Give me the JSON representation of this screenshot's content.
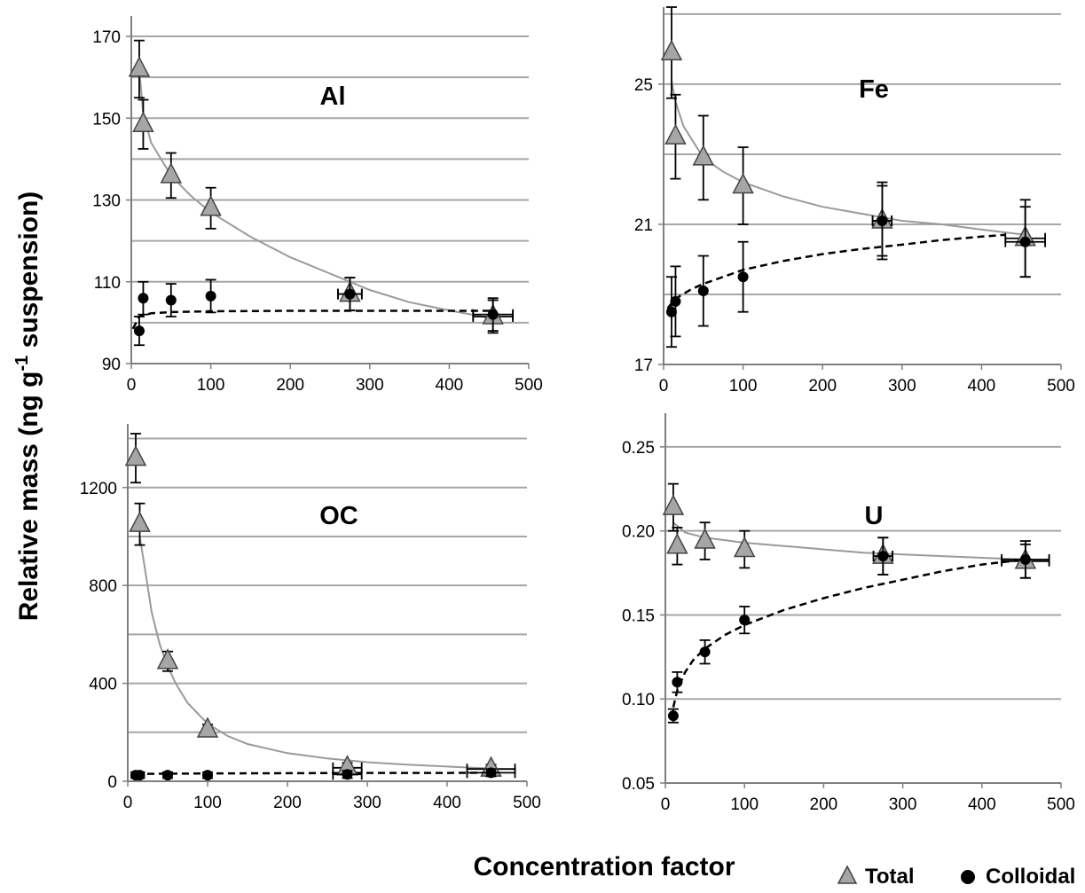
{
  "figure": {
    "ylabel_main": "Relative mass (ng g",
    "ylabel_sup": "-1",
    "ylabel_tail": " suspension)",
    "xlabel": "Concentration factor",
    "legend": [
      {
        "label": "Total",
        "marker": "triangle",
        "color": "#a6a6a6"
      },
      {
        "label": "Colloidal",
        "marker": "circle",
        "color": "#000000"
      }
    ],
    "colors": {
      "grid": "#a6a6a6",
      "total_fit": "#9a9a9a",
      "colloidal_fit": "#000000"
    }
  },
  "chart_data": [
    {
      "type": "scatter",
      "title": "Al",
      "xlabel": "",
      "ylabel": "",
      "xlim": [
        0,
        500
      ],
      "ylim": [
        90,
        175
      ],
      "xticks": [
        0,
        100,
        200,
        300,
        400,
        500
      ],
      "yticks": [
        90,
        110,
        130,
        150,
        170
      ],
      "grid_lines": [
        90,
        100,
        110,
        120,
        130,
        140,
        150,
        160,
        170
      ],
      "tick_format": "int",
      "series": [
        {
          "name": "Total",
          "marker": "triangle",
          "points": [
            {
              "x": 10,
              "y": 162,
              "yerr": 7
            },
            {
              "x": 15,
              "y": 148.5,
              "yerr": 6
            },
            {
              "x": 50,
              "y": 136,
              "yerr": 5.5
            },
            {
              "x": 100,
              "y": 128,
              "yerr": 5
            },
            {
              "x": 275,
              "y": 107,
              "yerr": 4,
              "xerr": 15
            },
            {
              "x": 455,
              "y": 101.5,
              "yerr": 4,
              "xerr": 25
            }
          ]
        },
        {
          "name": "Colloidal",
          "marker": "circle",
          "points": [
            {
              "x": 10,
              "y": 98,
              "yerr": 3.5
            },
            {
              "x": 15,
              "y": 106,
              "yerr": 4
            },
            {
              "x": 50,
              "y": 105.5,
              "yerr": 4
            },
            {
              "x": 100,
              "y": 106.5,
              "yerr": 4
            },
            {
              "x": 275,
              "y": 107,
              "yerr": 4,
              "xerr": 15
            },
            {
              "x": 455,
              "y": 102,
              "yerr": 4,
              "xerr": 25
            }
          ]
        }
      ],
      "fits": [
        {
          "series": "Total",
          "style": "solid",
          "x": [
            10,
            15,
            25,
            50,
            75,
            100,
            150,
            200,
            250,
            300,
            350,
            400,
            455
          ],
          "y": [
            162,
            151,
            144,
            136,
            131,
            127,
            121,
            116,
            112,
            108,
            105,
            103,
            101
          ]
        },
        {
          "series": "Colloidal",
          "style": "dashed",
          "x": [
            2,
            10,
            25,
            50,
            100,
            200,
            300,
            400,
            455
          ],
          "y": [
            98.5,
            101.5,
            102.3,
            102.6,
            102.8,
            102.9,
            102.9,
            102.9,
            102.9
          ]
        }
      ]
    },
    {
      "type": "scatter",
      "title": "Fe",
      "xlabel": "",
      "ylabel": "",
      "xlim": [
        0,
        500
      ],
      "ylim": [
        17,
        27.2
      ],
      "xticks": [
        0,
        100,
        200,
        300,
        400,
        500
      ],
      "yticks": [
        17,
        21,
        25
      ],
      "grid_lines": [
        17,
        19,
        21,
        23,
        25,
        27
      ],
      "tick_format": "int",
      "series": [
        {
          "name": "Total",
          "marker": "triangle",
          "points": [
            {
              "x": 10,
              "y": 25.9,
              "yerr": 1.3
            },
            {
              "x": 15,
              "y": 23.5,
              "yerr": 1.2
            },
            {
              "x": 50,
              "y": 22.9,
              "yerr": 1.2
            },
            {
              "x": 100,
              "y": 22.1,
              "yerr": 1.1
            },
            {
              "x": 275,
              "y": 21.1,
              "yerr": 1.1,
              "xerr": 12
            },
            {
              "x": 455,
              "y": 20.6,
              "yerr": 1.1,
              "xerr": 25
            }
          ]
        },
        {
          "name": "Colloidal",
          "marker": "circle",
          "points": [
            {
              "x": 10,
              "y": 18.5,
              "yerr": 1.0
            },
            {
              "x": 15,
              "y": 18.8,
              "yerr": 1.0
            },
            {
              "x": 50,
              "y": 19.1,
              "yerr": 1.0
            },
            {
              "x": 100,
              "y": 19.5,
              "yerr": 1.0
            },
            {
              "x": 275,
              "y": 21.1,
              "yerr": 1.0,
              "xerr": 12
            },
            {
              "x": 455,
              "y": 20.5,
              "yerr": 1.0,
              "xerr": 25
            }
          ]
        }
      ],
      "fits": [
        {
          "series": "Total",
          "style": "solid",
          "x": [
            10,
            15,
            25,
            50,
            75,
            100,
            150,
            200,
            250,
            300,
            350,
            400,
            455
          ],
          "y": [
            25.1,
            24.5,
            23.8,
            22.9,
            22.5,
            22.2,
            21.8,
            21.5,
            21.3,
            21.1,
            21.0,
            20.85,
            20.7
          ]
        },
        {
          "series": "Colloidal",
          "style": "dashed",
          "x": [
            5,
            10,
            20,
            35,
            50,
            75,
            100,
            150,
            200,
            250,
            300,
            350,
            400,
            430
          ],
          "y": [
            18.6,
            18.75,
            18.95,
            19.15,
            19.3,
            19.5,
            19.7,
            19.95,
            20.15,
            20.3,
            20.42,
            20.55,
            20.65,
            20.7
          ]
        }
      ]
    },
    {
      "type": "scatter",
      "title": "OC",
      "xlabel": "",
      "ylabel": "",
      "xlim": [
        0,
        500
      ],
      "ylim": [
        0,
        1460
      ],
      "xticks": [
        0,
        100,
        200,
        300,
        400,
        500
      ],
      "yticks": [
        0,
        400,
        800,
        1200
      ],
      "grid_lines": [
        0,
        200,
        400,
        600,
        800,
        1000,
        1200,
        1400
      ],
      "tick_format": "int",
      "series": [
        {
          "name": "Total",
          "marker": "triangle",
          "points": [
            {
              "x": 10,
              "y": 1320,
              "yerr": 100
            },
            {
              "x": 15,
              "y": 1050,
              "yerr": 85
            },
            {
              "x": 50,
              "y": 490,
              "yerr": 40
            },
            {
              "x": 100,
              "y": 210,
              "yerr": 22
            },
            {
              "x": 275,
              "y": 55,
              "yerr": 20,
              "xerr": 18
            },
            {
              "x": 455,
              "y": 50,
              "yerr": 18,
              "xerr": 30
            }
          ]
        },
        {
          "name": "Colloidal",
          "marker": "circle",
          "points": [
            {
              "x": 10,
              "y": 25,
              "yerr": 12
            },
            {
              "x": 15,
              "y": 25,
              "yerr": 12
            },
            {
              "x": 50,
              "y": 25,
              "yerr": 12
            },
            {
              "x": 100,
              "y": 25,
              "yerr": 12
            },
            {
              "x": 275,
              "y": 28,
              "yerr": 15,
              "xerr": 18
            },
            {
              "x": 455,
              "y": 35,
              "yerr": 15,
              "xerr": 30
            }
          ]
        }
      ],
      "fits": [
        {
          "series": "Total",
          "style": "solid",
          "x": [
            15,
            20,
            30,
            40,
            50,
            60,
            75,
            100,
            125,
            150,
            200,
            250,
            300,
            350,
            400,
            455
          ],
          "y": [
            1000,
            900,
            690,
            560,
            470,
            400,
            320,
            235,
            185,
            152,
            115,
            93,
            78,
            68,
            60,
            52
          ]
        },
        {
          "series": "Colloidal",
          "style": "dashed",
          "x": [
            10,
            100,
            200,
            300,
            400,
            455
          ],
          "y": [
            30,
            32,
            33,
            34,
            34,
            35
          ]
        }
      ]
    },
    {
      "type": "scatter",
      "title": "U",
      "xlabel": "",
      "ylabel": "",
      "xlim": [
        0,
        500
      ],
      "ylim": [
        0.05,
        0.27
      ],
      "xticks": [
        0,
        100,
        200,
        300,
        400,
        500
      ],
      "yticks": [
        0.05,
        0.1,
        0.15,
        0.2,
        0.25
      ],
      "grid_lines": [
        0.1,
        0.15,
        0.2,
        0.25
      ],
      "tick_format": "2dp",
      "series": [
        {
          "name": "Total",
          "marker": "triangle",
          "points": [
            {
              "x": 10,
              "y": 0.214,
              "yerr": 0.014
            },
            {
              "x": 15,
              "y": 0.191,
              "yerr": 0.011
            },
            {
              "x": 50,
              "y": 0.194,
              "yerr": 0.011
            },
            {
              "x": 100,
              "y": 0.189,
              "yerr": 0.011
            },
            {
              "x": 275,
              "y": 0.185,
              "yerr": 0.011,
              "xerr": 12
            },
            {
              "x": 455,
              "y": 0.182,
              "yerr": 0.01,
              "xerr": 30
            }
          ]
        },
        {
          "name": "Colloidal",
          "marker": "circle",
          "points": [
            {
              "x": 10,
              "y": 0.09,
              "yerr": 0.004
            },
            {
              "x": 15,
              "y": 0.11,
              "yerr": 0.006
            },
            {
              "x": 50,
              "y": 0.128,
              "yerr": 0.007
            },
            {
              "x": 100,
              "y": 0.147,
              "yerr": 0.008
            },
            {
              "x": 275,
              "y": 0.185,
              "yerr": 0.011,
              "xerr": 12
            },
            {
              "x": 455,
              "y": 0.183,
              "yerr": 0.011,
              "xerr": 30
            }
          ]
        }
      ],
      "fits": [
        {
          "series": "Total",
          "style": "solid",
          "x": [
            10,
            25,
            50,
            100,
            150,
            200,
            250,
            300,
            350,
            400,
            455
          ],
          "y": [
            0.205,
            0.199,
            0.196,
            0.193,
            0.191,
            0.189,
            0.187,
            0.186,
            0.185,
            0.184,
            0.183
          ]
        },
        {
          "series": "Colloidal",
          "style": "dashed",
          "x": [
            10,
            15,
            25,
            35,
            50,
            75,
            100,
            150,
            200,
            250,
            300,
            350,
            400,
            455
          ],
          "y": [
            0.095,
            0.105,
            0.116,
            0.123,
            0.13,
            0.138,
            0.144,
            0.153,
            0.16,
            0.166,
            0.171,
            0.176,
            0.18,
            0.183
          ]
        }
      ]
    }
  ]
}
